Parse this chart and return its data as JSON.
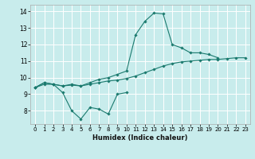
{
  "xlabel": "Humidex (Indice chaleur)",
  "bg_color": "#c8ecec",
  "grid_color": "#ffffff",
  "line_color": "#1a7a6e",
  "xlim": [
    -0.5,
    23.5
  ],
  "ylim": [
    7.2,
    14.4
  ],
  "yticks": [
    8,
    9,
    10,
    11,
    12,
    13,
    14
  ],
  "xticks": [
    0,
    1,
    2,
    3,
    4,
    5,
    6,
    7,
    8,
    9,
    10,
    11,
    12,
    13,
    14,
    15,
    16,
    17,
    18,
    19,
    20,
    21,
    22,
    23
  ],
  "line1_x": [
    0,
    1,
    2,
    3,
    4,
    5,
    6,
    7,
    8,
    9,
    10
  ],
  "line1_y": [
    9.4,
    9.7,
    9.6,
    9.1,
    8.0,
    7.5,
    8.2,
    8.1,
    7.8,
    9.0,
    9.1
  ],
  "line2_x": [
    0,
    1,
    2,
    3,
    4,
    5,
    6,
    7,
    8,
    9,
    10,
    11,
    12,
    13,
    14,
    15,
    16,
    17,
    18,
    19,
    20,
    21,
    22,
    23
  ],
  "line2_y": [
    9.4,
    9.6,
    9.6,
    9.5,
    9.55,
    9.5,
    9.6,
    9.7,
    9.8,
    9.85,
    9.95,
    10.1,
    10.3,
    10.5,
    10.7,
    10.85,
    10.95,
    11.0,
    11.05,
    11.1,
    11.1,
    11.15,
    11.2,
    11.2
  ],
  "line3_x": [
    0,
    1,
    2,
    3,
    4,
    5,
    6,
    7,
    8,
    9,
    10,
    11,
    12,
    13,
    14,
    15,
    16,
    17,
    18,
    19,
    20,
    21,
    22,
    23
  ],
  "line3_y": [
    9.4,
    9.7,
    9.6,
    9.5,
    9.6,
    9.5,
    9.7,
    9.9,
    10.0,
    10.2,
    10.4,
    12.6,
    13.4,
    13.9,
    13.85,
    12.0,
    11.8,
    11.5,
    11.5,
    11.4,
    11.2,
    null,
    null,
    null
  ]
}
